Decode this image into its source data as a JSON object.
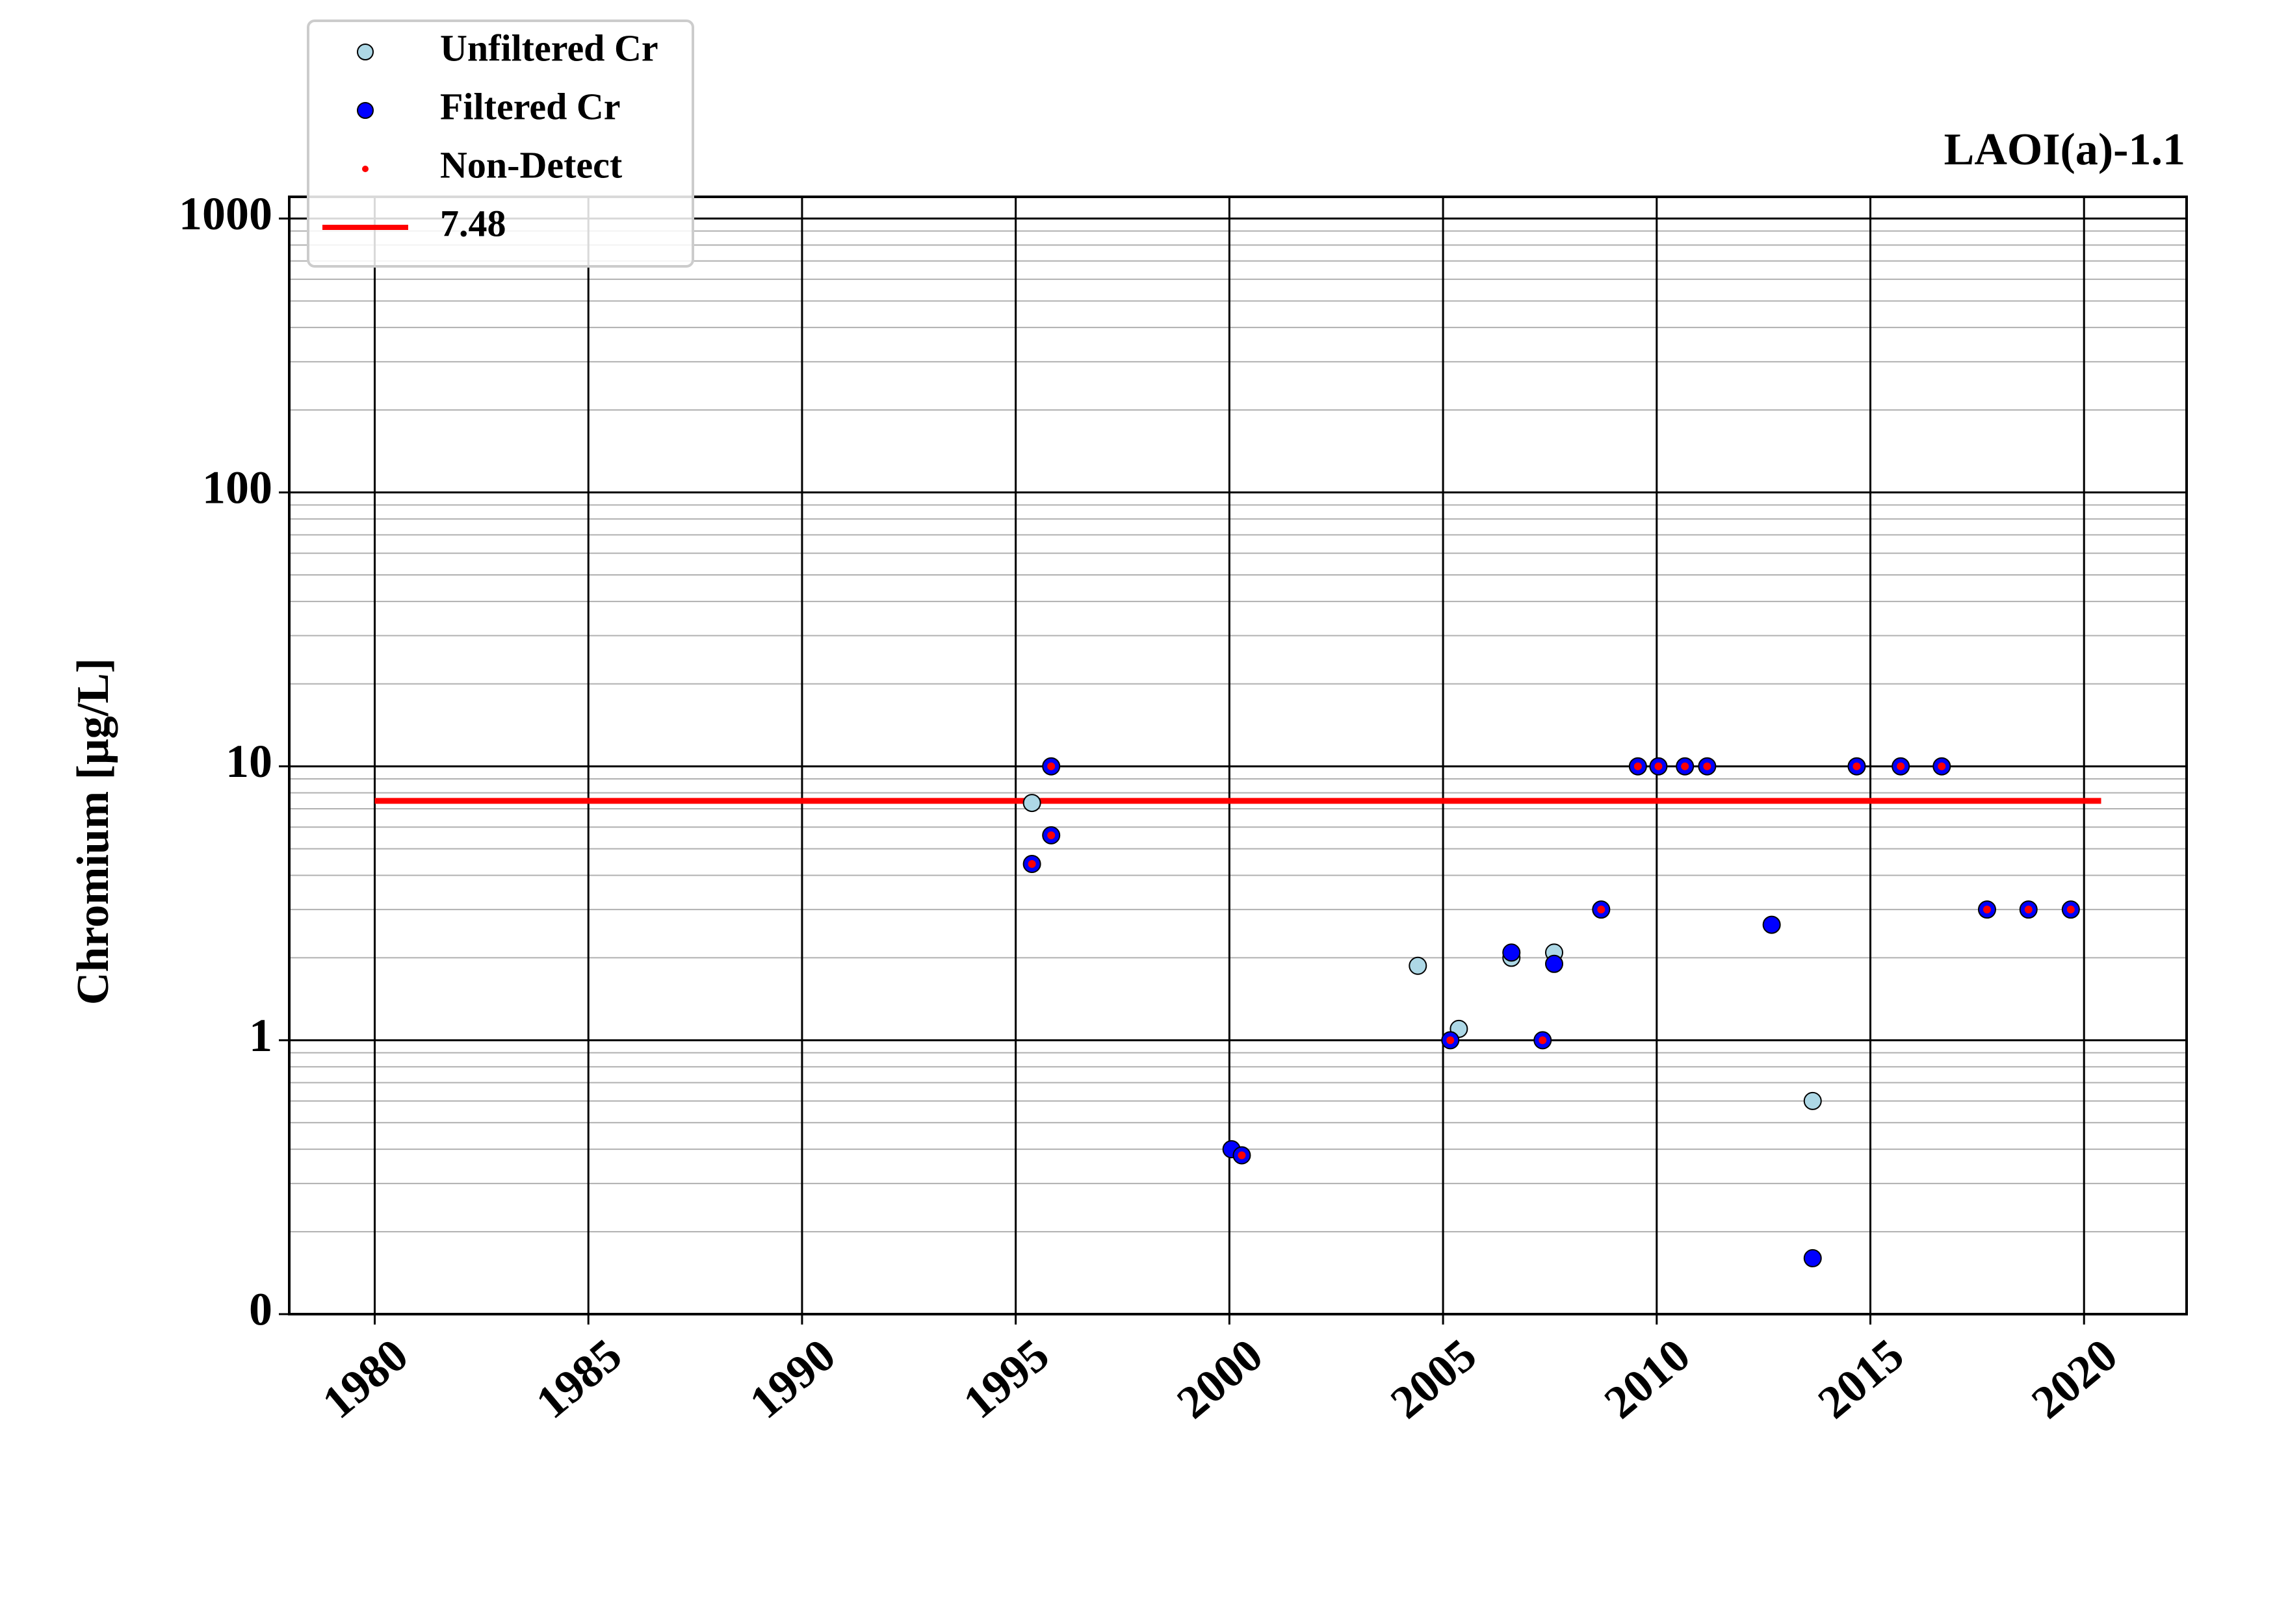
{
  "chart_data": {
    "type": "scatter",
    "title": "LAOI(a)-1.1",
    "y_label": "Chromium [μg/L]",
    "y_scale": "log",
    "grid": true,
    "legend_position": "upper left",
    "xlim": [
      1978,
      2022.4
    ],
    "xticks": [
      1980,
      1985,
      1990,
      1995,
      2000,
      2005,
      2010,
      2015,
      2020
    ],
    "ylim": [
      0.1,
      1200
    ],
    "yticks": [
      {
        "value": 0.1,
        "label": "0"
      },
      1,
      10,
      100,
      1000
    ],
    "yminorticks": [
      0.2,
      0.3,
      0.4,
      0.5,
      0.6,
      0.7,
      0.8,
      0.9,
      2,
      3,
      4,
      5,
      6,
      7,
      8,
      9,
      20,
      30,
      40,
      50,
      60,
      70,
      80,
      90,
      200,
      300,
      400,
      500,
      600,
      700,
      800,
      900
    ],
    "series": [
      {
        "name": "Unfiltered Cr",
        "color": "#add8e6",
        "marker": "circle",
        "x": [
          1995.38,
          2004.41,
          2005.37,
          2006.6,
          2007.6,
          2013.65
        ],
        "values": [
          7.35,
          1.87,
          1.1,
          2.0,
          2.09,
          0.6
        ]
      },
      {
        "name": "Filtered Cr",
        "color": "#0000ff",
        "marker": "circle",
        "x": [
          1995.38,
          1995.83,
          1995.83,
          2000.05,
          2000.29,
          2005.17,
          2006.6,
          2007.33,
          2007.6,
          2008.7,
          2009.56,
          2010.04,
          2010.66,
          2011.18,
          2012.69,
          2013.65,
          2014.68,
          2015.71,
          2016.67,
          2017.73,
          2018.7,
          2019.69
        ],
        "values": [
          4.4,
          10,
          5.6,
          0.4,
          0.38,
          1.0,
          2.09,
          1.0,
          1.9,
          3.0,
          10,
          10,
          10,
          10,
          2.64,
          0.16,
          10,
          10,
          10,
          3.0,
          3.0,
          3.0
        ]
      },
      {
        "name": "Non-Detect",
        "color": "#ff0000",
        "marker": "dot",
        "x": [
          1995.38,
          1995.83,
          1995.83,
          2000.29,
          2005.17,
          2007.33,
          2008.7,
          2009.56,
          2010.04,
          2010.66,
          2011.18,
          2014.68,
          2015.71,
          2016.67,
          2017.73,
          2018.7,
          2019.69
        ],
        "values": [
          4.4,
          10,
          5.6,
          0.38,
          1.0,
          1.0,
          3.0,
          10,
          10,
          10,
          10,
          10,
          10,
          10,
          3.0,
          3.0,
          3.0
        ]
      },
      {
        "name": "7.48",
        "color": "#ff0000",
        "marker": "line",
        "x": [
          1980,
          2020.4
        ],
        "values": [
          7.48,
          7.48
        ]
      }
    ]
  }
}
